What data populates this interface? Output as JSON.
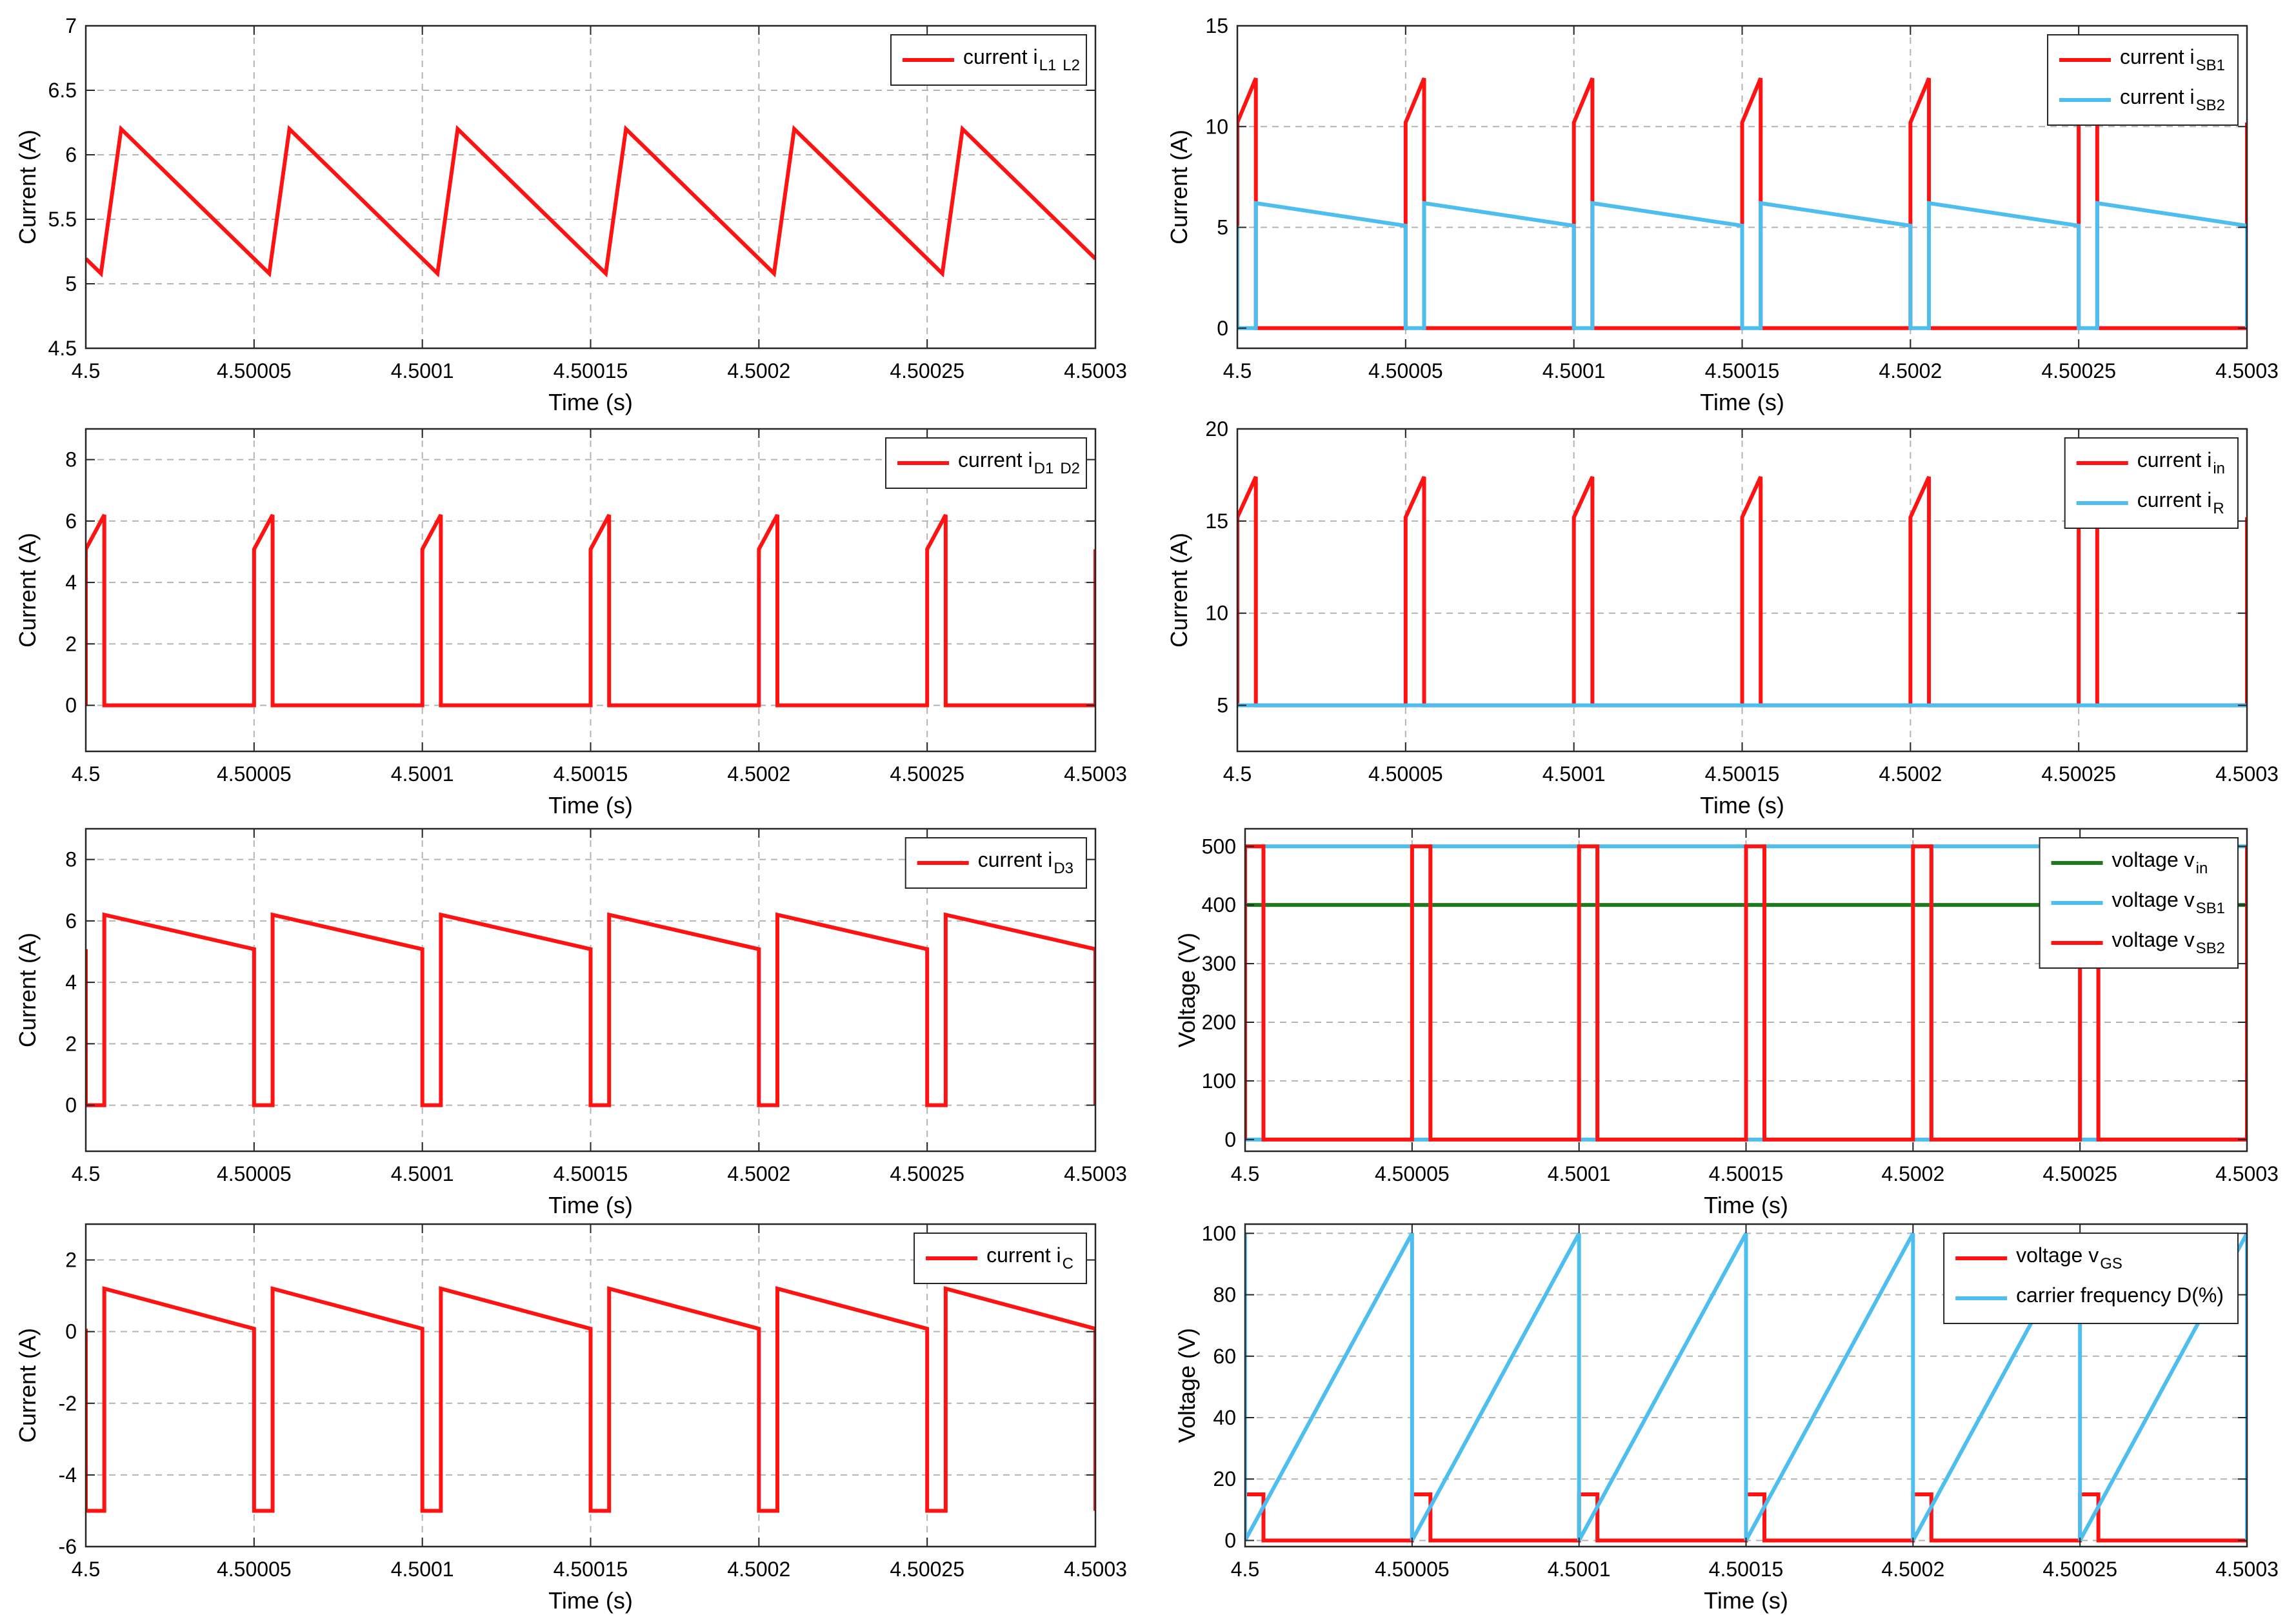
{
  "colors": {
    "red": "#ff1212",
    "blue": "#4dbeee",
    "green": "#1f7a1f",
    "grid": "#b3b3b3",
    "axis": "#262626"
  },
  "chart_data": [
    {
      "id": "p1",
      "type": "line",
      "xlim": [
        4.5,
        4.5003
      ],
      "ylim": [
        4.5,
        7
      ],
      "yticks": [
        4.5,
        5,
        5.5,
        6,
        6.5,
        7
      ],
      "ytick_labels": [
        "4.5",
        "5",
        "5.5",
        "6",
        "6.5",
        "7"
      ],
      "xticks": [
        4.5,
        4.50005,
        4.5001,
        4.50015,
        4.5002,
        4.50025,
        4.5003
      ],
      "xtick_labels": [
        "4.5",
        "4.50005",
        "4.5001",
        "4.50015",
        "4.5002",
        "4.50025",
        "4.5003"
      ],
      "xlabel": "Time (s)",
      "ylabel": "Current (A)",
      "legend_position": "top-right",
      "series": [
        {
          "name": "current i_L1 i_L2",
          "legend_text": "current i",
          "legend_subs": [
            "L1",
            "L2"
          ],
          "color": "red",
          "pattern": "triangle",
          "period": 5e-05,
          "t_offset": 4.5e-06,
          "duty": 0.12,
          "low": 5.08,
          "high": 6.2
        }
      ]
    },
    {
      "id": "p2",
      "type": "line",
      "xlim": [
        4.5,
        4.5003
      ],
      "ylim": [
        -1,
        15
      ],
      "yticks": [
        0,
        5,
        10,
        15
      ],
      "ytick_labels": [
        "0",
        "5",
        "10",
        "15"
      ],
      "xticks": [
        4.5,
        4.50005,
        4.5001,
        4.50015,
        4.5002,
        4.50025,
        4.5003
      ],
      "xtick_labels": [
        "4.5",
        "4.50005",
        "4.5001",
        "4.50015",
        "4.5002",
        "4.50025",
        "4.5003"
      ],
      "xlabel": "Time (s)",
      "ylabel": "Current (A)",
      "legend_position": "top-right",
      "series": [
        {
          "name": "current i_SB1",
          "legend_text": "current i",
          "legend_subs": [
            "SB1"
          ],
          "color": "red",
          "pattern": "pulse_ramp",
          "period": 5e-05,
          "t_offset": 0.0,
          "duty": 0.11,
          "ramp_from": 10.2,
          "ramp_to": 12.4,
          "base": 0
        },
        {
          "name": "current i_SB2",
          "legend_text": "current i",
          "legend_subs": [
            "SB2"
          ],
          "color": "blue",
          "pattern": "gap_decay",
          "period": 5e-05,
          "t_offset": 0.0,
          "duty": 0.11,
          "high": 6.2,
          "low": 5.08,
          "base": 0
        }
      ]
    },
    {
      "id": "p3",
      "type": "line",
      "xlim": [
        4.5,
        4.5003
      ],
      "ylim": [
        -1.5,
        9
      ],
      "yticks": [
        0,
        2,
        4,
        6,
        8
      ],
      "ytick_labels": [
        "0",
        "2",
        "4",
        "6",
        "8"
      ],
      "xticks": [
        4.5,
        4.50005,
        4.5001,
        4.50015,
        4.5002,
        4.50025,
        4.5003
      ],
      "xtick_labels": [
        "4.5",
        "4.50005",
        "4.5001",
        "4.50015",
        "4.5002",
        "4.50025",
        "4.5003"
      ],
      "xlabel": "Time (s)",
      "ylabel": "Current (A)",
      "legend_position": "top-right",
      "series": [
        {
          "name": "current i_D1 i_D2",
          "legend_text": "current i",
          "legend_subs": [
            "D1",
            "D2"
          ],
          "color": "red",
          "pattern": "pulse_ramp",
          "period": 5e-05,
          "t_offset": 0.0,
          "duty": 0.11,
          "ramp_from": 5.08,
          "ramp_to": 6.2,
          "base": 0
        }
      ]
    },
    {
      "id": "p4",
      "type": "line",
      "xlim": [
        4.5,
        4.5003
      ],
      "ylim": [
        2.5,
        20
      ],
      "yticks": [
        5,
        10,
        15,
        20
      ],
      "ytick_labels": [
        "5",
        "10",
        "15",
        "20"
      ],
      "xticks": [
        4.5,
        4.50005,
        4.5001,
        4.50015,
        4.5002,
        4.50025,
        4.5003
      ],
      "xtick_labels": [
        "4.5",
        "4.50005",
        "4.5001",
        "4.50015",
        "4.5002",
        "4.50025",
        "4.5003"
      ],
      "xlabel": "Time (s)",
      "ylabel": "Current (A)",
      "legend_position": "top-right",
      "series": [
        {
          "name": "current i_in",
          "legend_text": "current i",
          "legend_subs": [
            "in"
          ],
          "color": "red",
          "pattern": "pulse_ramp",
          "period": 5e-05,
          "t_offset": 0.0,
          "duty": 0.11,
          "ramp_from": 15.2,
          "ramp_to": 17.4,
          "base": 5
        },
        {
          "name": "current i_R",
          "legend_text": "current i",
          "legend_subs": [
            "R"
          ],
          "color": "blue",
          "pattern": "constant",
          "value": 5
        }
      ]
    },
    {
      "id": "p5",
      "type": "line",
      "xlim": [
        4.5,
        4.5003
      ],
      "ylim": [
        -1.5,
        9
      ],
      "yticks": [
        0,
        2,
        4,
        6,
        8
      ],
      "ytick_labels": [
        "0",
        "2",
        "4",
        "6",
        "8"
      ],
      "xticks": [
        4.5,
        4.50005,
        4.5001,
        4.50015,
        4.5002,
        4.50025,
        4.5003
      ],
      "xtick_labels": [
        "4.5",
        "4.50005",
        "4.5001",
        "4.50015",
        "4.5002",
        "4.50025",
        "4.5003"
      ],
      "xlabel": "Time (s)",
      "ylabel": "Current (A)",
      "legend_position": "top-right",
      "series": [
        {
          "name": "current i_D3",
          "legend_text": "current i",
          "legend_subs": [
            "D3"
          ],
          "color": "red",
          "pattern": "gap_decay",
          "period": 5e-05,
          "t_offset": 0.0,
          "duty": 0.11,
          "high": 6.2,
          "low": 5.08,
          "base": 0
        }
      ]
    },
    {
      "id": "p6",
      "type": "line",
      "xlim": [
        4.5,
        4.5003
      ],
      "ylim": [
        -20,
        530
      ],
      "yticks": [
        0,
        100,
        200,
        300,
        400,
        500
      ],
      "ytick_labels": [
        "0",
        "100",
        "200",
        "300",
        "400",
        "500"
      ],
      "xticks": [
        4.5,
        4.50005,
        4.5001,
        4.50015,
        4.5002,
        4.50025,
        4.5003
      ],
      "xtick_labels": [
        "4.5",
        "4.50005",
        "4.5001",
        "4.50015",
        "4.5002",
        "4.50025",
        "4.5003"
      ],
      "xlabel": "Time (s)",
      "ylabel": "Voltage (V)",
      "legend_position": "top-right",
      "series": [
        {
          "name": "voltage v_in",
          "legend_text": "voltage v",
          "legend_subs": [
            "in"
          ],
          "color": "green",
          "pattern": "constant",
          "value": 400
        },
        {
          "name": "voltage v_SB1",
          "legend_text": "voltage v",
          "legend_subs": [
            "SB1"
          ],
          "color": "blue",
          "pattern": "inv_pulse",
          "period": 5e-05,
          "t_offset": 0.0,
          "duty": 0.11,
          "high": 500,
          "low": 0
        },
        {
          "name": "voltage v_SB2",
          "legend_text": "voltage v",
          "legend_subs": [
            "SB2"
          ],
          "color": "red",
          "pattern": "pulse",
          "period": 5e-05,
          "t_offset": 0.0,
          "duty": 0.11,
          "high": 500,
          "low": 0
        }
      ]
    },
    {
      "id": "p7",
      "type": "line",
      "xlim": [
        4.5,
        4.5003
      ],
      "ylim": [
        -6,
        3
      ],
      "yticks": [
        -6,
        -4,
        -2,
        0,
        2
      ],
      "ytick_labels": [
        "-6",
        "-4",
        "-2",
        "0",
        "2"
      ],
      "xticks": [
        4.5,
        4.50005,
        4.5001,
        4.50015,
        4.5002,
        4.50025,
        4.5003
      ],
      "xtick_labels": [
        "4.5",
        "4.50005",
        "4.5001",
        "4.50015",
        "4.5002",
        "4.50025",
        "4.5003"
      ],
      "xlabel": "Time (s)",
      "ylabel": "Current (A)",
      "legend_position": "top-right",
      "series": [
        {
          "name": "current i_C",
          "legend_text": "current i",
          "legend_subs": [
            "C"
          ],
          "color": "red",
          "pattern": "gap_decay",
          "period": 5e-05,
          "t_offset": 0.0,
          "duty": 0.11,
          "high": 1.2,
          "low": 0.08,
          "base": -5
        }
      ]
    },
    {
      "id": "p8",
      "type": "line",
      "xlim": [
        4.5,
        4.5003
      ],
      "ylim": [
        -2,
        103
      ],
      "yticks": [
        0,
        20,
        40,
        60,
        80,
        100
      ],
      "ytick_labels": [
        "0",
        "20",
        "40",
        "60",
        "80",
        "100"
      ],
      "xticks": [
        4.5,
        4.50005,
        4.5001,
        4.50015,
        4.5002,
        4.50025,
        4.5003
      ],
      "xtick_labels": [
        "4.5",
        "4.50005",
        "4.5001",
        "4.50015",
        "4.5002",
        "4.50025",
        "4.5003"
      ],
      "xlabel": "Time (s)",
      "ylabel": "Voltage (V)",
      "legend_position": "top-right",
      "series": [
        {
          "name": "voltage v_GS",
          "legend_text": "voltage v",
          "legend_subs": [
            "GS"
          ],
          "color": "red",
          "pattern": "pulse",
          "period": 5e-05,
          "t_offset": 0.0,
          "duty": 0.11,
          "high": 15,
          "low": 0
        },
        {
          "name": "carrier frequency D(%)",
          "legend_text": "carrier frequency D(%)",
          "legend_subs": [],
          "color": "blue",
          "pattern": "sawtooth",
          "period": 5e-05,
          "t_offset": 0.0,
          "low": 0,
          "high": 100
        }
      ]
    }
  ]
}
